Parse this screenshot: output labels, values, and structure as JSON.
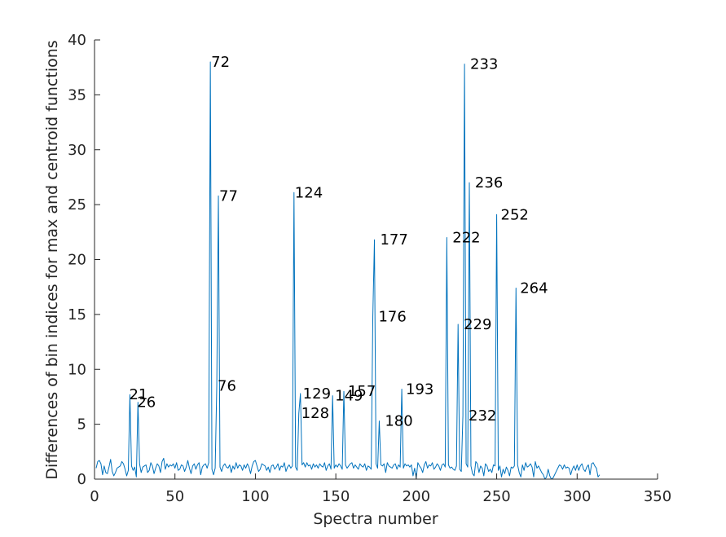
{
  "chart_data": {
    "type": "line",
    "title": "",
    "xlabel": "Spectra number",
    "ylabel": "Differences of bin indices for max and centroid functions",
    "xlim": [
      0,
      350
    ],
    "ylim": [
      0,
      40
    ],
    "xticks": [
      "0",
      "50",
      "100",
      "150",
      "200",
      "250",
      "300",
      "350"
    ],
    "yticks": [
      "0",
      "5",
      "10",
      "15",
      "20",
      "25",
      "30",
      "35",
      "40"
    ],
    "grid": false,
    "line_color": "#0072bd",
    "peaks": [
      {
        "x": 21,
        "y": 7.7,
        "label": "21"
      },
      {
        "x": 26,
        "y": 7.0,
        "label": "26"
      },
      {
        "x": 72,
        "y": 38.0,
        "label": "72"
      },
      {
        "x": 76,
        "y": 8.5,
        "label": "76"
      },
      {
        "x": 77,
        "y": 25.8,
        "label": "77"
      },
      {
        "x": 124,
        "y": 26.1,
        "label": "124"
      },
      {
        "x": 128,
        "y": 6.0,
        "label": "128"
      },
      {
        "x": 129,
        "y": 7.8,
        "label": "129"
      },
      {
        "x": 149,
        "y": 7.6,
        "label": "149"
      },
      {
        "x": 157,
        "y": 8.0,
        "label": "157"
      },
      {
        "x": 176,
        "y": 14.8,
        "label": "176"
      },
      {
        "x": 177,
        "y": 21.8,
        "label": "177"
      },
      {
        "x": 180,
        "y": 5.3,
        "label": "180"
      },
      {
        "x": 193,
        "y": 8.2,
        "label": "193"
      },
      {
        "x": 222,
        "y": 22.0,
        "label": "222"
      },
      {
        "x": 229,
        "y": 14.1,
        "label": "229"
      },
      {
        "x": 232,
        "y": 5.8,
        "label": "232"
      },
      {
        "x": 233,
        "y": 37.8,
        "label": "233"
      },
      {
        "x": 236,
        "y": 27.0,
        "label": "236"
      },
      {
        "x": 252,
        "y": 24.1,
        "label": "252"
      },
      {
        "x": 264,
        "y": 17.4,
        "label": "264"
      }
    ],
    "series": [
      {
        "x_start": 1,
        "values": [
          1.0,
          1.6,
          1.7,
          1.4,
          0.4,
          1.2,
          0.6,
          0.5,
          1.1,
          1.8,
          0.7,
          0.3,
          0.6,
          1.0,
          1.1,
          1.2,
          1.6,
          1.4,
          0.9,
          0.3,
          0.8,
          7.7,
          1.2,
          0.8,
          1.1,
          0.2,
          7.0,
          1.4,
          0.6,
          1.1,
          1.2,
          1.3,
          0.6,
          0.8,
          1.5,
          1.2,
          0.5,
          1.0,
          1.4,
          1.2,
          0.6,
          1.6,
          1.9,
          0.9,
          1.4,
          1.1,
          1.3,
          1.2,
          1.4,
          1.0,
          1.5,
          0.8,
          0.9,
          1.3,
          1.2,
          0.7,
          1.1,
          1.7,
          1.0,
          0.5,
          1.2,
          1.4,
          0.9,
          1.3,
          1.5,
          0.4,
          1.1,
          1.3,
          1.4,
          1.0,
          1.5,
          38.0,
          0.9,
          0.4,
          1.0,
          8.5,
          25.8,
          1.1,
          0.7,
          1.2,
          1.4,
          1.1,
          1.0,
          1.3,
          0.6,
          1.2,
          0.9,
          1.5,
          1.0,
          1.3,
          1.2,
          0.8,
          1.3,
          1.0,
          1.4,
          1.1,
          0.5,
          1.2,
          1.6,
          1.7,
          1.2,
          0.7,
          0.9,
          1.4,
          1.3,
          1.2,
          0.8,
          1.1,
          0.6,
          1.2,
          1.3,
          0.9,
          1.1,
          1.4,
          0.8,
          1.2,
          1.1,
          1.5,
          0.7,
          1.1,
          1.3,
          1.0,
          1.2,
          26.1,
          1.1,
          0.8,
          6.0,
          7.8,
          1.3,
          1.5,
          1.1,
          1.5,
          1.2,
          1.3,
          0.9,
          1.4,
          1.1,
          1.3,
          1.0,
          1.4,
          1.2,
          1.1,
          1.5,
          0.8,
          1.2,
          1.4,
          0.9,
          7.6,
          1.0,
          1.3,
          1.1,
          1.4,
          1.2,
          0.9,
          8.0,
          1.3,
          1.0,
          1.2,
          1.4,
          1.5,
          1.0,
          1.3,
          1.1,
          0.9,
          1.4,
          1.2,
          1.1,
          1.4,
          0.8,
          1.2,
          1.1,
          0.9,
          14.8,
          21.8,
          1.4,
          1.0,
          5.3,
          1.3,
          1.2,
          1.4,
          0.6,
          1.5,
          1.2,
          1.1,
          1.0,
          1.3,
          1.4,
          0.9,
          1.3,
          1.1,
          8.2,
          1.0,
          1.4,
          1.2,
          1.3,
          1.1,
          1.3,
          0.3,
          1.0,
          0.1,
          1.5,
          1.2,
          1.0,
          0.6,
          1.3,
          1.6,
          1.0,
          1.3,
          1.2,
          1.5,
          0.9,
          1.1,
          1.4,
          1.2,
          0.8,
          1.3,
          1.4,
          1.1,
          22.0,
          1.3,
          1.0,
          1.1,
          0.9,
          0.8,
          1.2,
          14.1,
          0.9,
          0.7,
          5.8,
          37.8,
          1.4,
          1.1,
          27.0,
          1.2,
          0.5,
          0.3,
          1.6,
          1.4,
          0.6,
          1.2,
          1.0,
          0.3,
          1.4,
          1.2,
          0.7,
          0.9,
          0.6,
          1.3,
          1.2,
          24.1,
          0.8,
          1.2,
          0.2,
          0.9,
          0.5,
          1.1,
          0.8,
          0.3,
          1.1,
          1.0,
          1.2,
          17.4,
          1.3,
          0.6,
          0.2,
          1.3,
          0.8,
          1.5,
          1.1,
          1.2,
          1.4,
          1.1,
          0.2,
          1.6,
          1.0,
          1.2,
          0.9,
          0.6,
          0.4,
          0.0,
          0.2,
          0.9,
          0.3,
          0.0,
          0.1,
          0.4,
          0.7,
          1.0,
          1.3,
          1.2,
          0.9,
          1.3,
          1.0,
          1.1,
          1.0,
          0.4,
          0.9,
          1.2,
          0.8,
          1.3,
          0.8,
          1.2,
          1.4,
          0.9,
          0.7,
          1.1,
          1.3,
          0.4,
          1.4,
          1.5,
          1.2,
          1.0,
          0.2,
          0.4
        ]
      }
    ]
  }
}
